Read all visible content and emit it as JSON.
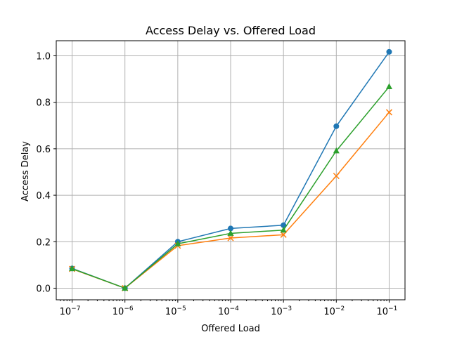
{
  "chart_data": {
    "type": "line",
    "title": "Access Delay vs. Offered Load",
    "xlabel": "Offered Load",
    "ylabel": "Access Delay",
    "xscale": "log",
    "x": [
      1e-07,
      1e-06,
      1e-05,
      0.0001,
      0.001,
      0.01,
      0.1
    ],
    "xticks": [
      {
        "base": "10",
        "exp": "−7"
      },
      {
        "base": "10",
        "exp": "−6"
      },
      {
        "base": "10",
        "exp": "−5"
      },
      {
        "base": "10",
        "exp": "−4"
      },
      {
        "base": "10",
        "exp": "−3"
      },
      {
        "base": "10",
        "exp": "−2"
      },
      {
        "base": "10",
        "exp": "−1"
      }
    ],
    "yticks": [
      "0.0",
      "0.2",
      "0.4",
      "0.6",
      "0.8",
      "1.0"
    ],
    "ytick_values": [
      0.0,
      0.2,
      0.4,
      0.6,
      0.8,
      1.0
    ],
    "xlim_exp": [
      -7.3,
      -0.7
    ],
    "ylim": [
      -0.05,
      1.065
    ],
    "grid": true,
    "series": [
      {
        "values": [
          0.085,
          0.0,
          0.2,
          0.257,
          0.271,
          0.697,
          1.017
        ],
        "color": "#1f77b4",
        "marker": "circle"
      },
      {
        "values": [
          0.083,
          0.0,
          0.183,
          0.216,
          0.23,
          0.483,
          0.757
        ],
        "color": "#ff7f0e",
        "marker": "x"
      },
      {
        "values": [
          0.084,
          0.0,
          0.191,
          0.236,
          0.25,
          0.591,
          0.867
        ],
        "color": "#2ca02c",
        "marker": "triangle"
      }
    ]
  }
}
